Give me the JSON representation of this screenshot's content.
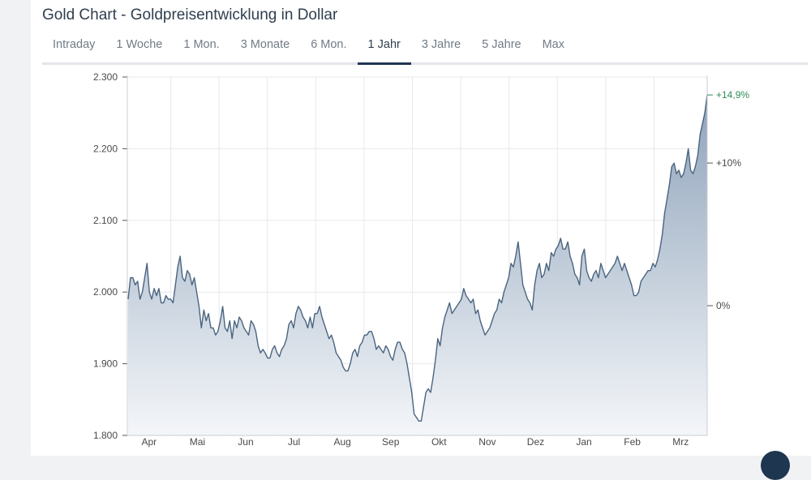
{
  "title": "Gold Chart - Goldpreisentwicklung in Dollar",
  "tabs": [
    {
      "label": "Intraday",
      "active": false
    },
    {
      "label": "1 Woche",
      "active": false
    },
    {
      "label": "1 Mon.",
      "active": false
    },
    {
      "label": "3 Monate",
      "active": false
    },
    {
      "label": "6 Mon.",
      "active": false
    },
    {
      "label": "1 Jahr",
      "active": true
    },
    {
      "label": "3 Jahre",
      "active": false
    },
    {
      "label": "5 Jahre",
      "active": false
    },
    {
      "label": "Max",
      "active": false
    }
  ],
  "colors": {
    "line": "#4a6480",
    "area_top": "#8ea3ba",
    "area_bottom": "#f4f6f9",
    "positive": "#2f8c5a"
  },
  "chart_data": {
    "type": "area",
    "ylim": [
      1800,
      2300
    ],
    "y_ticks": [
      1800,
      1900,
      2000,
      2100,
      2200,
      2300
    ],
    "y_tick_labels": [
      "1.800",
      "1.900",
      "2.000",
      "2.100",
      "2.200",
      "2.300"
    ],
    "x_tick_labels": [
      "Apr",
      "Mai",
      "Jun",
      "Jul",
      "Aug",
      "Sep",
      "Okt",
      "Nov",
      "Dez",
      "Jan",
      "Feb",
      "Mrz"
    ],
    "right_axis_labels": [
      {
        "label": "+14,9%",
        "value": 2275
      },
      {
        "label": "+10%",
        "value": 2180
      },
      {
        "label": "0%",
        "value": 1981
      }
    ],
    "grid": true,
    "values": [
      1990,
      2020,
      2020,
      2010,
      2015,
      1990,
      2000,
      2020,
      2040,
      2000,
      1990,
      2005,
      1995,
      2005,
      1985,
      1985,
      1995,
      1990,
      1990,
      1985,
      2010,
      2035,
      2050,
      2020,
      2015,
      2030,
      2025,
      2010,
      2020,
      2000,
      1980,
      1950,
      1975,
      1960,
      1970,
      1950,
      1950,
      1940,
      1945,
      1960,
      1980,
      1950,
      1945,
      1960,
      1935,
      1960,
      1950,
      1965,
      1960,
      1950,
      1945,
      1940,
      1960,
      1955,
      1945,
      1925,
      1915,
      1920,
      1915,
      1908,
      1908,
      1920,
      1925,
      1915,
      1910,
      1920,
      1925,
      1935,
      1955,
      1960,
      1950,
      1970,
      1980,
      1975,
      1965,
      1960,
      1950,
      1965,
      1950,
      1970,
      1970,
      1980,
      1965,
      1955,
      1945,
      1935,
      1940,
      1930,
      1915,
      1910,
      1905,
      1895,
      1890,
      1890,
      1900,
      1915,
      1920,
      1910,
      1925,
      1930,
      1940,
      1940,
      1945,
      1945,
      1935,
      1920,
      1925,
      1920,
      1915,
      1925,
      1920,
      1910,
      1905,
      1920,
      1930,
      1930,
      1920,
      1915,
      1900,
      1880,
      1860,
      1830,
      1825,
      1820,
      1820,
      1840,
      1860,
      1865,
      1860,
      1880,
      1905,
      1935,
      1925,
      1950,
      1965,
      1975,
      1985,
      1970,
      1975,
      1980,
      1985,
      1990,
      2005,
      1995,
      1990,
      1985,
      1990,
      1970,
      1975,
      1960,
      1950,
      1940,
      1945,
      1950,
      1960,
      1970,
      1975,
      1990,
      1985,
      2000,
      2010,
      2020,
      2040,
      2035,
      2050,
      2070,
      2040,
      2010,
      2000,
      1990,
      1985,
      1975,
      2010,
      2030,
      2040,
      2020,
      2025,
      2040,
      2030,
      2055,
      2050,
      2060,
      2065,
      2075,
      2060,
      2060,
      2070,
      2050,
      2040,
      2025,
      2020,
      2010,
      2050,
      2060,
      2030,
      2020,
      2015,
      2025,
      2030,
      2020,
      2040,
      2030,
      2020,
      2025,
      2030,
      2035,
      2040,
      2050,
      2040,
      2030,
      2040,
      2030,
      2020,
      2010,
      1995,
      1995,
      2000,
      2015,
      2020,
      2025,
      2030,
      2030,
      2040,
      2035,
      2045,
      2060,
      2080,
      2110,
      2130,
      2150,
      2175,
      2180,
      2165,
      2170,
      2160,
      2165,
      2180,
      2200,
      2170,
      2165,
      2175,
      2190,
      2220,
      2235,
      2250,
      2275
    ]
  }
}
